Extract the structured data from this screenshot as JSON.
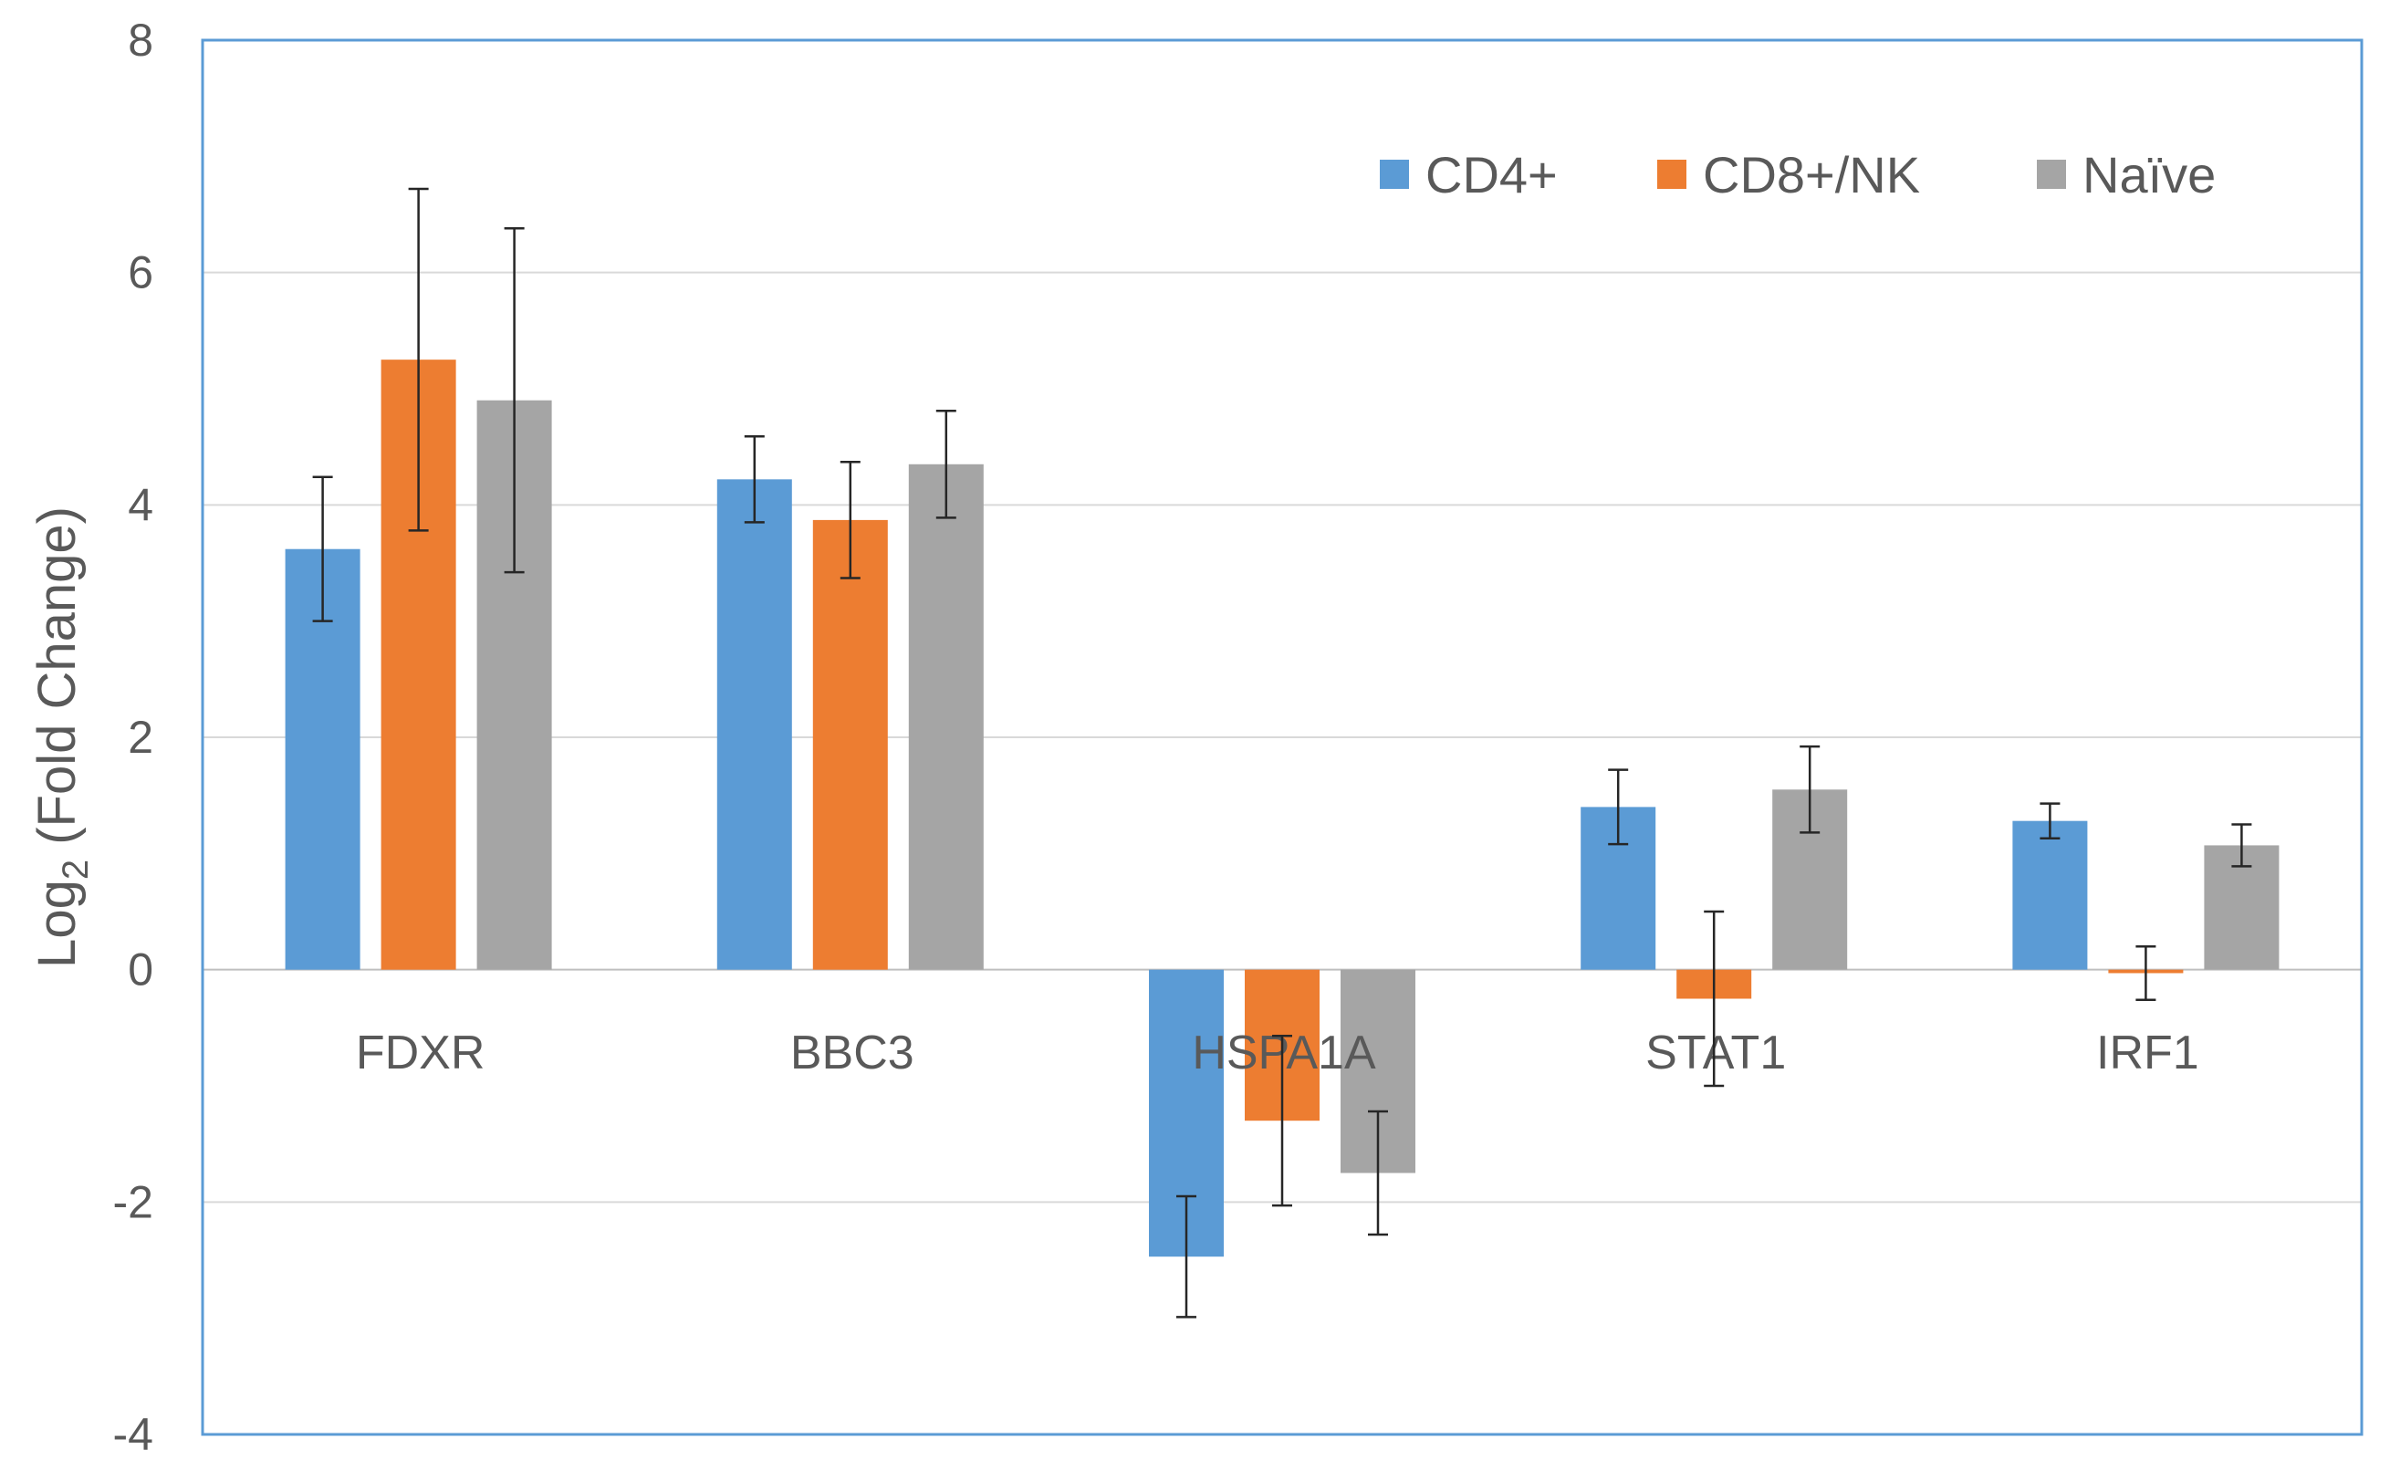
{
  "chart_data": {
    "type": "bar",
    "title": "",
    "xlabel": "",
    "ylabel": "Log",
    "ylabel_subscript": "2",
    "ylabel_suffix": " (Fold Change)",
    "ylim": [
      -4,
      8
    ],
    "yticks": [
      -4,
      -2,
      0,
      2,
      4,
      6,
      8
    ],
    "grid": true,
    "legend_position": "top-right",
    "categories": [
      "FDXR",
      "BBC3",
      "HSPA1A",
      "STAT1",
      "IRF1"
    ],
    "series": [
      {
        "name": "CD4+",
        "color": "#5b9bd5",
        "values": [
          3.62,
          4.22,
          -2.47,
          1.4,
          1.28
        ],
        "errors": [
          0.62,
          0.37,
          0.52,
          0.32,
          0.15
        ]
      },
      {
        "name": "CD8+/NK",
        "color": "#ed7d31",
        "values": [
          5.25,
          3.87,
          -1.3,
          -0.25,
          -0.03
        ],
        "errors": [
          1.47,
          0.5,
          0.73,
          0.75,
          0.23
        ]
      },
      {
        "name": "Naïve",
        "color": "#a5a5a5",
        "values": [
          4.9,
          4.35,
          -1.75,
          1.55,
          1.07
        ],
        "errors": [
          1.48,
          0.46,
          0.53,
          0.37,
          0.18
        ]
      }
    ]
  }
}
